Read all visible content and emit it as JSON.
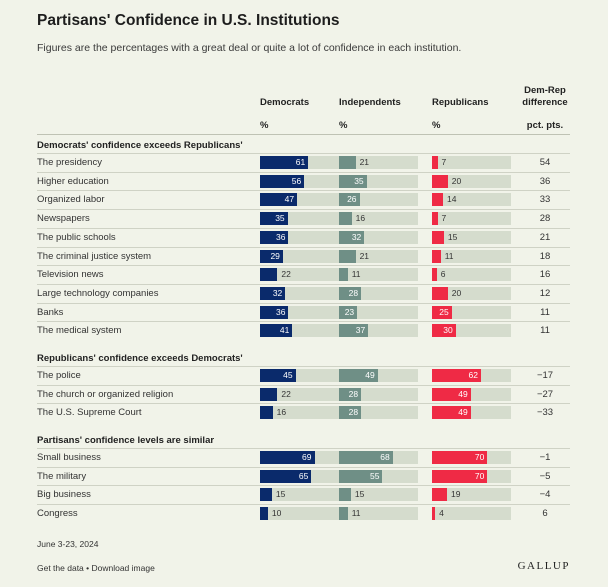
{
  "title": "Partisans' Confidence in U.S. Institutions",
  "subtitle": "Figures are the percentages with a great deal or quite a lot of confidence in each institution.",
  "columns": {
    "dem": "Democrats",
    "ind": "Independents",
    "rep": "Republicans",
    "diff_line1": "Dem-Rep",
    "diff_line2": "difference",
    "pct": "%",
    "pct_pts": "pct. pts."
  },
  "colors": {
    "dem": "#0a2a6b",
    "ind": "#6f8f86",
    "rep": "#ef2a45",
    "track": "#d5dccd"
  },
  "chart_data": {
    "type": "bar",
    "orientation": "horizontal",
    "unit": "%",
    "xlim": [
      0,
      100
    ],
    "title": "Partisans' Confidence in U.S. Institutions",
    "series_names": [
      "Democrats",
      "Independents",
      "Republicans"
    ],
    "groups": [
      {
        "label": "Democrats' confidence exceeds Republicans'",
        "rows": [
          {
            "name": "The presidency",
            "dem": 61,
            "ind": 21,
            "rep": 7,
            "diff": "54"
          },
          {
            "name": "Higher education",
            "dem": 56,
            "ind": 35,
            "rep": 20,
            "diff": "36"
          },
          {
            "name": "Organized labor",
            "dem": 47,
            "ind": 26,
            "rep": 14,
            "diff": "33"
          },
          {
            "name": "Newspapers",
            "dem": 35,
            "ind": 16,
            "rep": 7,
            "diff": "28"
          },
          {
            "name": "The public schools",
            "dem": 36,
            "ind": 32,
            "rep": 15,
            "diff": "21"
          },
          {
            "name": "The criminal justice system",
            "dem": 29,
            "ind": 21,
            "rep": 11,
            "diff": "18"
          },
          {
            "name": "Television news",
            "dem": 22,
            "ind": 11,
            "rep": 6,
            "diff": "16"
          },
          {
            "name": "Large technology companies",
            "dem": 32,
            "ind": 28,
            "rep": 20,
            "diff": "12"
          },
          {
            "name": "Banks",
            "dem": 36,
            "ind": 23,
            "rep": 25,
            "diff": "11"
          },
          {
            "name": "The medical system",
            "dem": 41,
            "ind": 37,
            "rep": 30,
            "diff": "11"
          }
        ]
      },
      {
        "label": "Republicans' confidence exceeds Democrats'",
        "rows": [
          {
            "name": "The police",
            "dem": 45,
            "ind": 49,
            "rep": 62,
            "diff": "−17"
          },
          {
            "name": "The church or organized religion",
            "dem": 22,
            "ind": 28,
            "rep": 49,
            "diff": "−27"
          },
          {
            "name": "The U.S. Supreme Court",
            "dem": 16,
            "ind": 28,
            "rep": 49,
            "diff": "−33"
          }
        ]
      },
      {
        "label": "Partisans' confidence levels are similar",
        "rows": [
          {
            "name": "Small business",
            "dem": 69,
            "ind": 68,
            "rep": 70,
            "diff": "−1"
          },
          {
            "name": "The military",
            "dem": 65,
            "ind": 55,
            "rep": 70,
            "diff": "−5"
          },
          {
            "name": "Big business",
            "dem": 15,
            "ind": 15,
            "rep": 19,
            "diff": "−4"
          },
          {
            "name": "Congress",
            "dem": 10,
            "ind": 11,
            "rep": 4,
            "diff": "6"
          }
        ]
      }
    ]
  },
  "footer": {
    "dates": "June 3-23, 2024",
    "links": "Get the data • Download image",
    "logo": "GALLUP"
  }
}
